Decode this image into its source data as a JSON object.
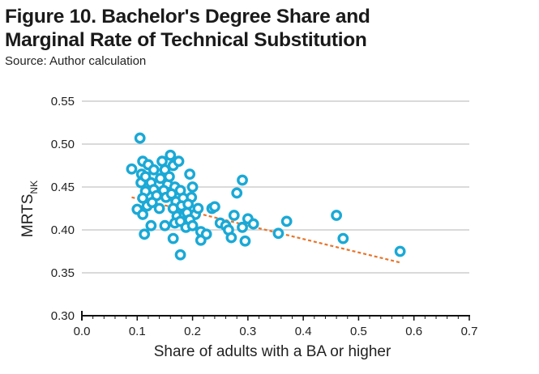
{
  "figure": {
    "title_line1": "Figure 10. Bachelor's Degree Share and",
    "title_line2": "Marginal Rate of Technical Substitution",
    "source": "Source: Author calculation"
  },
  "colors": {
    "points": "#1aa9d6",
    "trend": "#e8742a",
    "grid": "#b5b5b5",
    "axis": "#111111"
  },
  "chart_data": {
    "type": "scatter",
    "title": "Figure 10. Bachelor's Degree Share and Marginal Rate of Technical Substitution",
    "xlabel": "Share of adults with a BA or higher",
    "ylabel_main": "MRTS",
    "ylabel_sub": "NK",
    "xlim": [
      0.0,
      0.7
    ],
    "ylim": [
      0.3,
      0.55
    ],
    "xticks": [
      "0.0",
      "0.1",
      "0.2",
      "0.3",
      "0.4",
      "0.5",
      "0.6",
      "0.7"
    ],
    "yticks": [
      "0.30",
      "0.35",
      "0.40",
      "0.45",
      "0.50",
      "0.55"
    ],
    "grid": "horizontal",
    "trendline": {
      "style": "dashed",
      "x": [
        0.09,
        0.575
      ],
      "y": [
        0.438,
        0.362
      ]
    },
    "points": [
      {
        "x": 0.105,
        "y": 0.507
      },
      {
        "x": 0.09,
        "y": 0.471
      },
      {
        "x": 0.11,
        "y": 0.48
      },
      {
        "x": 0.108,
        "y": 0.465
      },
      {
        "x": 0.107,
        "y": 0.455
      },
      {
        "x": 0.12,
        "y": 0.476
      },
      {
        "x": 0.115,
        "y": 0.462
      },
      {
        "x": 0.115,
        "y": 0.445
      },
      {
        "x": 0.11,
        "y": 0.437
      },
      {
        "x": 0.1,
        "y": 0.424
      },
      {
        "x": 0.11,
        "y": 0.418
      },
      {
        "x": 0.118,
        "y": 0.428
      },
      {
        "x": 0.113,
        "y": 0.395
      },
      {
        "x": 0.125,
        "y": 0.405
      },
      {
        "x": 0.13,
        "y": 0.47
      },
      {
        "x": 0.125,
        "y": 0.455
      },
      {
        "x": 0.13,
        "y": 0.447
      },
      {
        "x": 0.135,
        "y": 0.44
      },
      {
        "x": 0.127,
        "y": 0.432
      },
      {
        "x": 0.14,
        "y": 0.425
      },
      {
        "x": 0.145,
        "y": 0.48
      },
      {
        "x": 0.15,
        "y": 0.47
      },
      {
        "x": 0.142,
        "y": 0.46
      },
      {
        "x": 0.155,
        "y": 0.453
      },
      {
        "x": 0.148,
        "y": 0.446
      },
      {
        "x": 0.152,
        "y": 0.438
      },
      {
        "x": 0.16,
        "y": 0.487
      },
      {
        "x": 0.165,
        "y": 0.475
      },
      {
        "x": 0.158,
        "y": 0.462
      },
      {
        "x": 0.168,
        "y": 0.45
      },
      {
        "x": 0.162,
        "y": 0.442
      },
      {
        "x": 0.17,
        "y": 0.433
      },
      {
        "x": 0.165,
        "y": 0.425
      },
      {
        "x": 0.172,
        "y": 0.416
      },
      {
        "x": 0.168,
        "y": 0.408
      },
      {
        "x": 0.15,
        "y": 0.405
      },
      {
        "x": 0.175,
        "y": 0.48
      },
      {
        "x": 0.178,
        "y": 0.446
      },
      {
        "x": 0.183,
        "y": 0.437
      },
      {
        "x": 0.18,
        "y": 0.428
      },
      {
        "x": 0.185,
        "y": 0.418
      },
      {
        "x": 0.178,
        "y": 0.41
      },
      {
        "x": 0.19,
        "y": 0.42
      },
      {
        "x": 0.188,
        "y": 0.403
      },
      {
        "x": 0.165,
        "y": 0.39
      },
      {
        "x": 0.178,
        "y": 0.371
      },
      {
        "x": 0.195,
        "y": 0.465
      },
      {
        "x": 0.2,
        "y": 0.45
      },
      {
        "x": 0.198,
        "y": 0.438
      },
      {
        "x": 0.192,
        "y": 0.43
      },
      {
        "x": 0.205,
        "y": 0.418
      },
      {
        "x": 0.195,
        "y": 0.412
      },
      {
        "x": 0.2,
        "y": 0.405
      },
      {
        "x": 0.21,
        "y": 0.425
      },
      {
        "x": 0.215,
        "y": 0.398
      },
      {
        "x": 0.215,
        "y": 0.388
      },
      {
        "x": 0.225,
        "y": 0.395
      },
      {
        "x": 0.235,
        "y": 0.425
      },
      {
        "x": 0.24,
        "y": 0.427
      },
      {
        "x": 0.25,
        "y": 0.408
      },
      {
        "x": 0.26,
        "y": 0.405
      },
      {
        "x": 0.265,
        "y": 0.4
      },
      {
        "x": 0.27,
        "y": 0.391
      },
      {
        "x": 0.275,
        "y": 0.417
      },
      {
        "x": 0.28,
        "y": 0.443
      },
      {
        "x": 0.29,
        "y": 0.458
      },
      {
        "x": 0.29,
        "y": 0.403
      },
      {
        "x": 0.295,
        "y": 0.387
      },
      {
        "x": 0.3,
        "y": 0.413
      },
      {
        "x": 0.31,
        "y": 0.407
      },
      {
        "x": 0.355,
        "y": 0.396
      },
      {
        "x": 0.37,
        "y": 0.41
      },
      {
        "x": 0.46,
        "y": 0.417
      },
      {
        "x": 0.472,
        "y": 0.39
      },
      {
        "x": 0.575,
        "y": 0.375
      }
    ]
  }
}
